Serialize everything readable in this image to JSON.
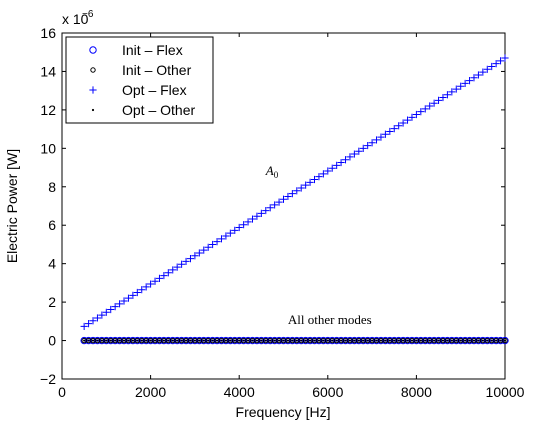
{
  "chart_data": {
    "type": "scatter",
    "xlabel": "Frequency [Hz]",
    "ylabel": "Electric Power [W]",
    "y_multiplier": "x 10",
    "y_multiplier_exponent": "−6",
    "xlim": [
      0,
      10000
    ],
    "ylim": [
      -2,
      16
    ],
    "xticks": [
      0,
      2000,
      4000,
      6000,
      8000,
      10000
    ],
    "xtick_labels": [
      "0",
      "2000",
      "4000",
      "6000",
      "8000",
      "10000"
    ],
    "yticks": [
      -2,
      0,
      2,
      4,
      6,
      8,
      10,
      12,
      14,
      16
    ],
    "ytick_labels": [
      "−2",
      "0",
      "2",
      "4",
      "6",
      "8",
      "10",
      "12",
      "14",
      "16"
    ],
    "grid": false,
    "legend_position": "top-left",
    "legend": [
      {
        "label": "Init – Flex",
        "marker": "circle-large"
      },
      {
        "label": "Init – Other",
        "marker": "circle-small"
      },
      {
        "label": "Opt – Flex",
        "marker": "plus"
      },
      {
        "label": "Opt – Other",
        "marker": "dot"
      }
    ],
    "series": [
      {
        "name": "Init – Flex",
        "marker": "circle-large",
        "color": "#0000ff",
        "x_range": [
          500,
          10000
        ],
        "n_points": 96,
        "slope": 0,
        "intercept": 0
      },
      {
        "name": "Init – Other",
        "marker": "circle-small",
        "color": "#000000",
        "x_range": [
          500,
          10000
        ],
        "n_points": 96,
        "slope": 0,
        "intercept": 0
      },
      {
        "name": "Opt – Flex",
        "marker": "plus",
        "color": "#0000ff",
        "x_range": [
          500,
          10000
        ],
        "n_points": 96,
        "slope": 0.00147,
        "intercept": 0
      },
      {
        "name": "Opt – Other",
        "marker": "dot",
        "color": "#000000",
        "x_range": [
          500,
          10000
        ],
        "n_points": 96,
        "slope": 0,
        "intercept": 0
      }
    ],
    "annotations": [
      {
        "text": "A",
        "subscript": "0",
        "x": 4600,
        "y": 8.6,
        "style": "italic"
      },
      {
        "text": "All other modes",
        "x": 5100,
        "y": 0.85,
        "style": "normal"
      }
    ]
  }
}
